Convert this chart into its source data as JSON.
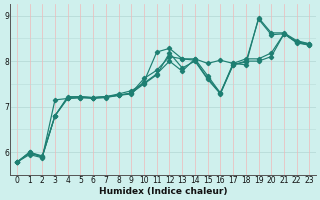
{
  "xlabel": "Humidex (Indice chaleur)",
  "xlim": [
    -0.5,
    23.5
  ],
  "ylim": [
    5.5,
    9.25
  ],
  "yticks": [
    6,
    7,
    8,
    9
  ],
  "xticks": [
    0,
    1,
    2,
    3,
    4,
    5,
    6,
    7,
    8,
    9,
    10,
    11,
    12,
    13,
    14,
    15,
    16,
    17,
    18,
    19,
    20,
    21,
    22,
    23
  ],
  "bg_color": "#cff0ed",
  "grid_color_h": "#b8dbd8",
  "grid_color_v": "#f0b8b8",
  "line_color": "#1e7f72",
  "lines": [
    [
      5.78,
      5.95,
      5.88,
      7.15,
      7.18,
      7.2,
      7.2,
      7.22,
      7.25,
      7.28,
      7.55,
      8.2,
      8.28,
      8.05,
      8.02,
      7.62,
      7.3,
      7.95,
      7.92,
      8.95,
      8.62,
      8.62,
      8.45,
      8.38
    ],
    [
      5.78,
      5.98,
      5.9,
      6.8,
      7.18,
      7.2,
      7.18,
      7.2,
      7.25,
      7.3,
      7.62,
      7.8,
      8.1,
      8.05,
      8.05,
      7.95,
      8.02,
      7.95,
      8.05,
      8.05,
      8.18,
      8.6,
      8.42,
      8.38
    ],
    [
      5.78,
      6.0,
      5.92,
      6.8,
      7.22,
      7.22,
      7.2,
      7.22,
      7.28,
      7.35,
      7.52,
      7.72,
      8.0,
      7.78,
      8.05,
      7.68,
      7.3,
      7.92,
      8.0,
      8.0,
      8.1,
      8.6,
      8.42,
      8.35
    ],
    [
      5.78,
      6.0,
      5.9,
      6.8,
      7.2,
      7.22,
      7.2,
      7.22,
      7.25,
      7.3,
      7.5,
      7.7,
      8.18,
      7.85,
      8.0,
      7.6,
      7.28,
      7.92,
      7.98,
      8.92,
      8.58,
      8.6,
      8.4,
      8.35
    ]
  ],
  "marker": "D",
  "markersize": 2.2,
  "linewidth": 0.85
}
